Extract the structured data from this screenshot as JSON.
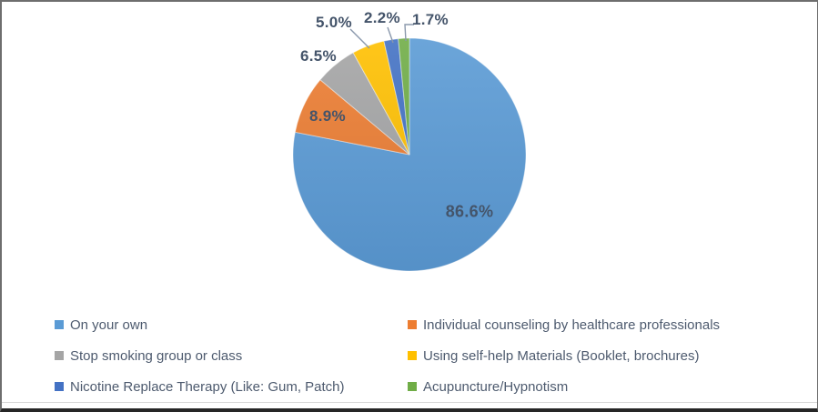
{
  "chart_data": {
    "type": "pie",
    "title": "",
    "legend_position": "bottom",
    "direction": "clockwise",
    "start_angle_deg": 0,
    "slices": [
      {
        "name": "On your own",
        "value": 86.6,
        "label": "86.6%",
        "color": "#5B9BD5"
      },
      {
        "name": "Individual counseling by healthcare professionals",
        "value": 8.9,
        "label": "8.9%",
        "color": "#ED7D31"
      },
      {
        "name": "Stop smoking group or class",
        "value": 6.5,
        "label": "6.5%",
        "color": "#A5A5A5"
      },
      {
        "name": "Using self-help Materials (Booklet, brochures)",
        "value": 5.0,
        "label": "5.0%",
        "color": "#FFC000"
      },
      {
        "name": "Nicotine Replace Therapy (Like: Gum, Patch)",
        "value": 2.2,
        "label": "2.2%",
        "color": "#4472C4"
      },
      {
        "name": "Acupuncture/Hypnotism",
        "value": 1.7,
        "label": "1.7%",
        "color": "#70AD47"
      }
    ],
    "label_color": "#44546A",
    "leader_line_color": "#8A98AC",
    "slice_separator_color": "rgba(255,255,255,0.45)"
  },
  "frame": {
    "background": "#FFFFFF",
    "border_color": "#6E6E6E",
    "bottom_border_color": "#262626",
    "divider_color": "#D8D8D8"
  },
  "legend": {
    "text_color": "#4D5A6E"
  }
}
